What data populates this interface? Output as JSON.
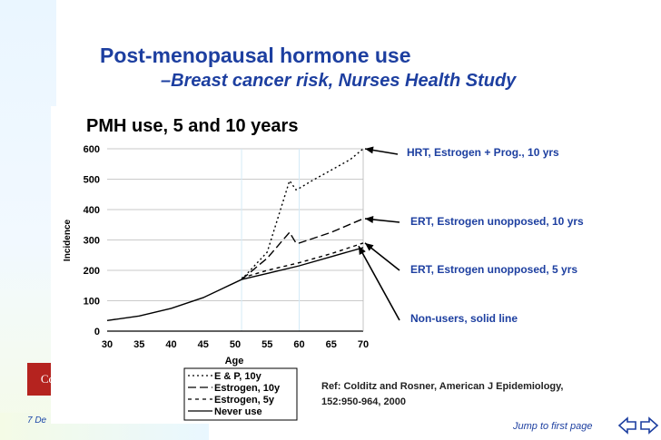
{
  "slide": {
    "title": "Post-menopausal hormone use",
    "subtitle": "–Breast cancer risk, Nurses Health Study",
    "date": "7 De",
    "logo": "Co",
    "jump_link": "Jump to first page",
    "reference_line1": "Ref: Colditz and Rosner, American J Epidemiology,",
    "reference_line2": "152:950-964, 2000"
  },
  "annotations": [
    {
      "text": "HRT, Estrogen + Prog.,  10 yrs"
    },
    {
      "text": "ERT, Estrogen unopposed, 10 yrs"
    },
    {
      "text": "ERT, Estrogen unopposed, 5 yrs"
    },
    {
      "text": "Non-users, solid line"
    }
  ],
  "colors": {
    "title": "#1d3fa0",
    "accent": "#1d3fa0",
    "logo": "#b5231f"
  },
  "chart_data": {
    "type": "line",
    "title": "PMH use, 5 and 10 years",
    "xlabel": "Age",
    "ylabel": "Incidence",
    "xlim": [
      30,
      70
    ],
    "ylim": [
      0,
      600
    ],
    "xticks": [
      30,
      35,
      40,
      45,
      50,
      55,
      60,
      65,
      70
    ],
    "yticks": [
      0,
      100,
      200,
      300,
      400,
      500,
      600
    ],
    "grid": "horizontal",
    "legend_position": "bottom-left",
    "series": [
      {
        "name": "Never use",
        "style": "solid",
        "x": [
          30,
          35,
          40,
          45,
          48,
          51,
          55,
          60,
          65,
          70
        ],
        "y": [
          35,
          50,
          75,
          110,
          140,
          170,
          190,
          215,
          245,
          275
        ]
      },
      {
        "name": "E & P, 10y",
        "style": "dotted",
        "x": [
          51,
          55,
          58.5,
          59.5,
          60,
          62,
          65,
          68,
          70
        ],
        "y": [
          170,
          260,
          495,
          465,
          470,
          495,
          530,
          565,
          600
        ]
      },
      {
        "name": "Estrogen, 10y",
        "style": "dashed",
        "x": [
          51,
          55,
          58.5,
          59.5,
          60,
          65,
          70
        ],
        "y": [
          170,
          240,
          325,
          290,
          290,
          325,
          370
        ]
      },
      {
        "name": "Estrogen, 5y",
        "style": "dashed-short",
        "x": [
          51,
          55,
          60,
          65,
          70
        ],
        "y": [
          175,
          200,
          225,
          255,
          290
        ]
      }
    ]
  }
}
